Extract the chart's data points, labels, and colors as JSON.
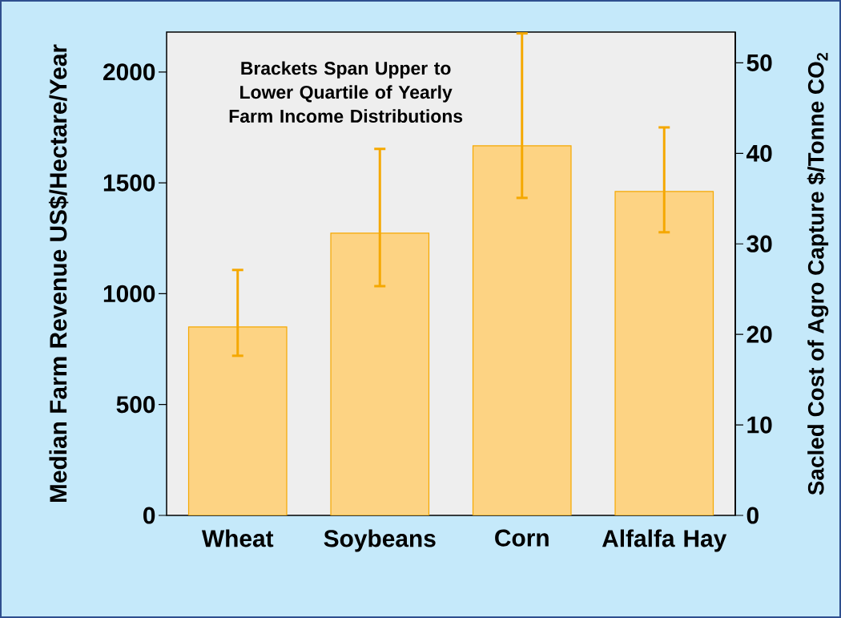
{
  "chart_data": {
    "type": "bar",
    "categories": [
      "Wheat",
      "Soybeans",
      "Corn",
      "Alfalfa Hay"
    ],
    "values": [
      850,
      1273,
      1667,
      1461
    ],
    "errors": [
      [
        720,
        1107
      ],
      [
        1034,
        1653
      ],
      [
        1432,
        2174
      ],
      [
        1277,
        1750
      ]
    ],
    "color": "#fdd383",
    "ylabel": "Median Farm Revenue US$/Hectare/Year",
    "y2label": "Sacled Cost of Agro Capture $/Tonne CO$_{2}$",
    "ylim": [
      0,
      2180
    ],
    "yticks": [
      0,
      500,
      1000,
      1500,
      2000
    ],
    "y2lim": [
      0,
      53.4
    ],
    "y2ticks": [
      0,
      10,
      20,
      30,
      40,
      50
    ],
    "annotations": [
      "Brackets Span Upper to Lower Quartile of Yearly Farm Income Distributions"
    ]
  }
}
